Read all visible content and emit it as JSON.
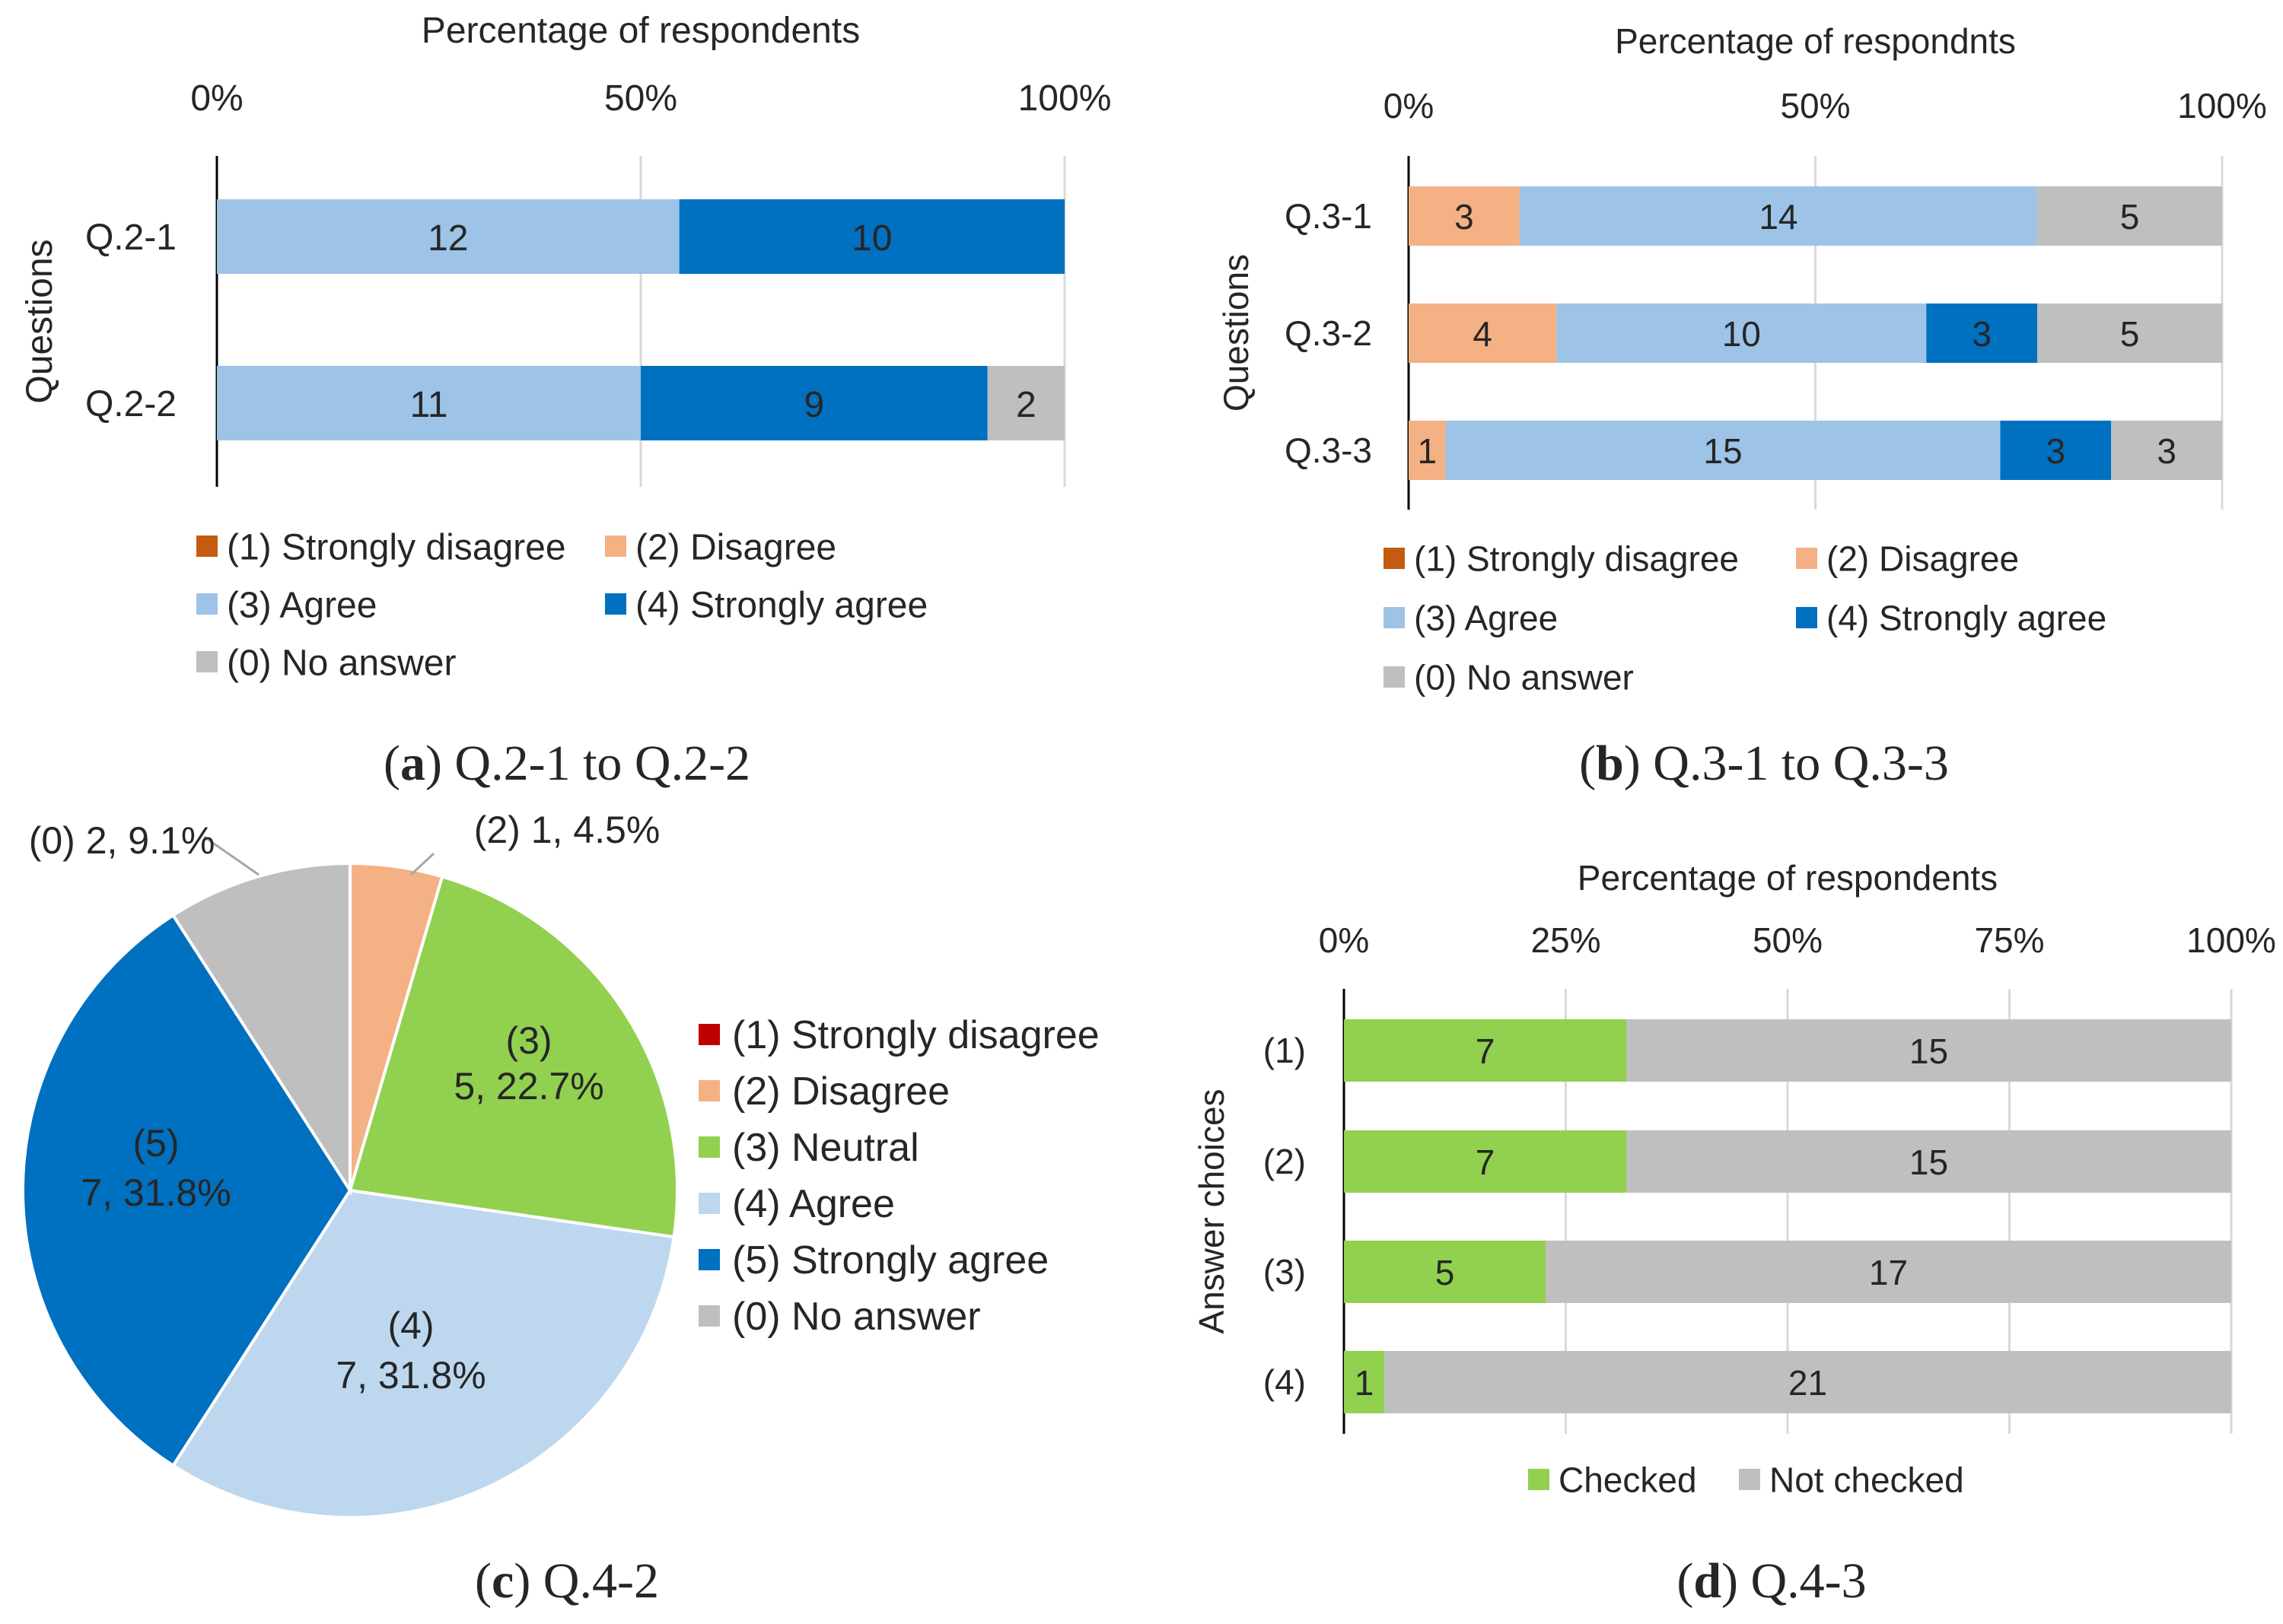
{
  "colors": {
    "strongly_disagree_a": "#C55A11",
    "strongly_disagree_c": "#C00000",
    "disagree": "#F4B183",
    "agree": "#9DC3E6",
    "agree_pie": "#BDD7EE",
    "neutral": "#92D050",
    "strongly_agree": "#0070C0",
    "no_answer": "#BFBFBF",
    "checked": "#92D050",
    "not_checked": "#BFBFBF",
    "axis": "#000000",
    "grid": "#D9D9D9"
  },
  "chart_data": [
    {
      "id": "a",
      "type": "bar",
      "orientation": "horizontal",
      "stacked": "percent",
      "panel_label": "(a)",
      "caption_letter": "a",
      "caption_text": "Q.2-1 to Q.2-2",
      "title": "Percentage of respondents",
      "ylabel": "Questions",
      "xlim": [
        0,
        100
      ],
      "xticks": [
        "0%",
        "50%",
        "100%"
      ],
      "categories": [
        "Q.2-1",
        "Q.2-2"
      ],
      "series": [
        {
          "name": "(1) Strongly disagree",
          "color_key": "strongly_disagree_a",
          "values": [
            0,
            0
          ]
        },
        {
          "name": "(2) Disagree",
          "color_key": "disagree",
          "values": [
            0,
            0
          ]
        },
        {
          "name": "(3) Agree",
          "color_key": "agree",
          "values": [
            12,
            11
          ]
        },
        {
          "name": "(4) Strongly agree",
          "color_key": "strongly_agree",
          "values": [
            10,
            9
          ]
        },
        {
          "name": "(0) No answer",
          "color_key": "no_answer",
          "values": [
            0,
            2
          ]
        }
      ],
      "legend": "bottom"
    },
    {
      "id": "b",
      "type": "bar",
      "orientation": "horizontal",
      "stacked": "percent",
      "panel_label": "(b)",
      "caption_letter": "b",
      "caption_text": "Q.3-1 to Q.3-3",
      "title": "Percentage of respondnts",
      "ylabel": "Questions",
      "xlim": [
        0,
        100
      ],
      "xticks": [
        "0%",
        "50%",
        "100%"
      ],
      "categories": [
        "Q.3-1",
        "Q.3-2",
        "Q.3-3"
      ],
      "series": [
        {
          "name": "(1) Strongly disagree",
          "color_key": "strongly_disagree_a",
          "values": [
            0,
            0,
            0
          ]
        },
        {
          "name": "(2) Disagree",
          "color_key": "disagree",
          "values": [
            3,
            4,
            1
          ]
        },
        {
          "name": "(3) Agree",
          "color_key": "agree",
          "values": [
            14,
            10,
            15
          ]
        },
        {
          "name": "(4) Strongly agree",
          "color_key": "strongly_agree",
          "values": [
            0,
            3,
            3
          ]
        },
        {
          "name": "(0) No answer",
          "color_key": "no_answer",
          "values": [
            5,
            5,
            3
          ]
        }
      ],
      "legend": "bottom"
    },
    {
      "id": "c",
      "type": "pie",
      "panel_label": "(c)",
      "caption_letter": "c",
      "caption_text": "Q.4-2",
      "slices": [
        {
          "legend": "(1) Strongly disagree",
          "color_key": "strongly_disagree_c",
          "value": 0,
          "pct": "0.0%",
          "label_top": "",
          "label_bottom": ""
        },
        {
          "legend": "(2) Disagree",
          "color_key": "disagree",
          "value": 1,
          "pct": "4.5%",
          "label_top": "",
          "label_bottom": "(2) 1, 4.5%"
        },
        {
          "legend": "(3) Neutral",
          "color_key": "neutral",
          "value": 5,
          "pct": "22.7%",
          "label_top": "(3)",
          "label_bottom": "5, 22.7%"
        },
        {
          "legend": "(4) Agree",
          "color_key": "agree_pie",
          "value": 7,
          "pct": "31.8%",
          "label_top": "(4)",
          "label_bottom": "7, 31.8%"
        },
        {
          "legend": "(5) Strongly agree",
          "color_key": "strongly_agree",
          "value": 7,
          "pct": "31.8%",
          "label_top": "(5)",
          "label_bottom": "7, 31.8%"
        },
        {
          "legend": "(0) No answer",
          "color_key": "no_answer",
          "value": 2,
          "pct": "9.1%",
          "label_top": "",
          "label_bottom": "(0) 2, 9.1%"
        }
      ],
      "legend": "right"
    },
    {
      "id": "d",
      "type": "bar",
      "orientation": "horizontal",
      "stacked": "percent",
      "panel_label": "(d)",
      "caption_letter": "d",
      "caption_text": "Q.4-3",
      "title": "Percentage of respondents",
      "ylabel": "Answer choices",
      "xlim": [
        0,
        100
      ],
      "xticks": [
        "0%",
        "25%",
        "50%",
        "75%",
        "100%"
      ],
      "categories": [
        "(1)",
        "(2)",
        "(3)",
        "(4)"
      ],
      "series": [
        {
          "name": "Checked",
          "color_key": "checked",
          "values": [
            7,
            7,
            5,
            1
          ]
        },
        {
          "name": "Not checked",
          "color_key": "not_checked",
          "values": [
            15,
            15,
            17,
            21
          ]
        }
      ],
      "legend": "bottom"
    }
  ]
}
